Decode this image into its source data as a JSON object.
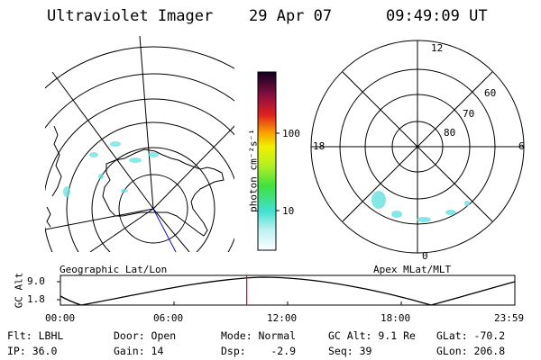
{
  "header": {
    "title": "Ultraviolet Imager",
    "date": "29 Apr 07",
    "time": "09:49:09 UT"
  },
  "colorbar": {
    "unit_label": "photon cm⁻²s⁻¹",
    "ticks": [
      "100",
      "10"
    ]
  },
  "left_map": {
    "label": "Geographic Lat/Lon"
  },
  "right_map": {
    "label": "Apex MLat/MLT",
    "mlt_labels": {
      "top": "12",
      "left": "18",
      "right": "6",
      "bottom": "0"
    },
    "lat_labels": [
      "60",
      "70",
      "80"
    ]
  },
  "altitude_plot": {
    "ylabel": "GC Alt",
    "yticks": [
      "9.0",
      "1.8"
    ],
    "xticks": [
      "00:00",
      "06:00",
      "12:00",
      "18:00",
      "23:59"
    ],
    "current_time_fraction": 0.41
  },
  "info": {
    "flt": "Flt: LBHL",
    "ip": "IP: 36.0",
    "door": "Door: Open",
    "gain": "Gain: 14",
    "mode": "Mode: Normal",
    "dsp": "Dsp:    -2.9",
    "gc_alt": "GC Alt: 9.1 Re",
    "seq": "Seq: 39",
    "glat": "GLat: -70.2",
    "glon": "GLon: 206.8"
  }
}
